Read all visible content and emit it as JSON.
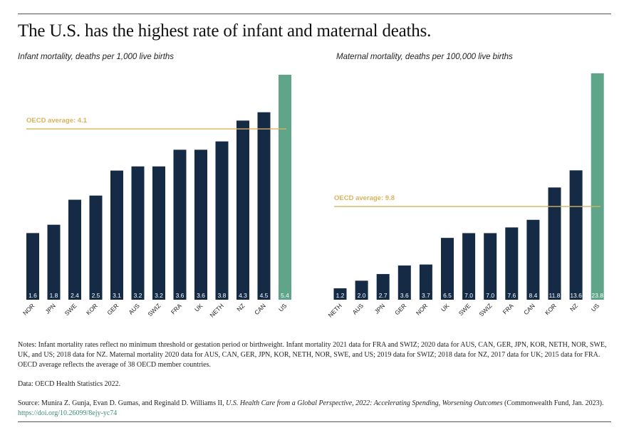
{
  "title": "The U.S. has the highest rate of infant and maternal deaths.",
  "colors": {
    "bar": "#152a45",
    "highlight": "#5fa58a",
    "oecd": "#d8b35c",
    "label_text": "#ffffff"
  },
  "chart_data": [
    {
      "type": "bar",
      "title": "Infant mortality, deaths per 1,000 live births",
      "categories": [
        "NOR",
        "JPN",
        "SWE",
        "KOR",
        "GER",
        "AUS",
        "SWIZ",
        "FRA",
        "UK",
        "NETH",
        "NZ",
        "CAN",
        "US"
      ],
      "values": [
        1.6,
        1.8,
        2.4,
        2.5,
        3.1,
        3.2,
        3.2,
        3.6,
        3.6,
        3.8,
        4.3,
        4.5,
        5.4
      ],
      "value_labels": [
        "1.6",
        "1.8",
        "2.4",
        "2.5",
        "3.1",
        "3.2",
        "3.2",
        "3.6",
        "3.6",
        "3.8",
        "4.3",
        "4.5",
        "5.4"
      ],
      "highlight": "US",
      "reference_line": {
        "label": "OECD average: 4.1",
        "value": 4.1
      },
      "ylim": [
        0,
        5.4
      ],
      "grid": false
    },
    {
      "type": "bar",
      "title": "Maternal mortality, deaths per 100,000 live births",
      "categories": [
        "NETH",
        "AUS",
        "JPN",
        "GER",
        "NOR",
        "UK",
        "SWE",
        "SWIZ",
        "FRA",
        "CAN",
        "KOR",
        "NZ",
        "US"
      ],
      "values": [
        1.2,
        2.0,
        2.7,
        3.6,
        3.7,
        6.5,
        7.0,
        7.0,
        7.6,
        8.4,
        11.8,
        13.6,
        23.8
      ],
      "value_labels": [
        "1.2",
        "2.0",
        "2.7",
        "3.6",
        "3.7",
        "6.5",
        "7.0",
        "7.0",
        "7.6",
        "8.4",
        "11.8",
        "13.6",
        "23.8"
      ],
      "highlight": "US",
      "reference_line": {
        "label": "OECD average: 9.8",
        "value": 9.8
      },
      "ylim": [
        0,
        23.8
      ],
      "grid": false
    }
  ],
  "notes": {
    "text": "Notes: Infant mortality rates reflect no minimum threshold or gestation period or birthweight. Infant mortality 2021 data for FRA and SWIZ; 2020 data for AUS, CAN, GER, JPN, KOR, NETH, NOR, SWE, UK, and US; 2018 data for NZ. Maternal mortality 2020 data for AUS, CAN, GER, JPN, KOR, NETH, NOR, SWE, and US; 2019 data for SWIZ; 2018 data for NZ, 2017 data for UK; 2015 data for FRA. OECD average reflects the average of 38 OECD member countries.",
    "data_source": "Data: OECD Health Statistics 2022.",
    "source_prefix": "Source: Munira Z. Gunja, Evan D. Gumas, and Reginald D. Williams II, ",
    "source_title": "U.S. Health Care from a Global Perspective, 2022: Accelerating Spending, Worsening Outcomes",
    "source_suffix": " (Commonwealth Fund, Jan. 2023). ",
    "source_link": "https://doi.org/10.26099/8ejy-yc74"
  }
}
